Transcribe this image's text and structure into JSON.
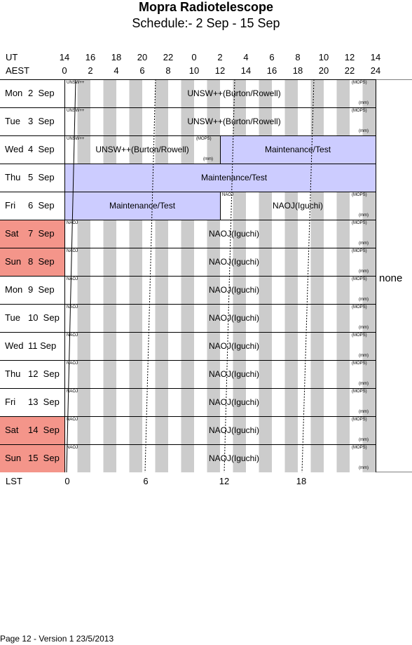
{
  "title": "Mopra Radiotelescope",
  "subtitle": "Schedule:- 2  Sep - 15 Sep",
  "axes": {
    "ut_label": "UT",
    "aest_label": "AEST",
    "lst_label": "LST",
    "ut_ticks": [
      "14",
      "16",
      "18",
      "20",
      "22",
      "0",
      "2",
      "4",
      "6",
      "8",
      "10",
      "12",
      "14"
    ],
    "aest_ticks": [
      "0",
      "2",
      "4",
      "6",
      "8",
      "10",
      "12",
      "14",
      "16",
      "18",
      "20",
      "22",
      "24"
    ],
    "lst_ticks": [
      "0",
      "6",
      "12",
      "18"
    ]
  },
  "days": [
    {
      "dow": "Mon",
      "date": "2  Sep",
      "weekend": false
    },
    {
      "dow": "Tue",
      "date": "3  Sep",
      "weekend": false
    },
    {
      "dow": "Wed",
      "date": "4  Sep",
      "weekend": false
    },
    {
      "dow": "Thu",
      "date": "5  Sep",
      "weekend": false
    },
    {
      "dow": "Fri",
      "date": "6  Sep",
      "weekend": false
    },
    {
      "dow": "Sat",
      "date": "7  Sep",
      "weekend": true
    },
    {
      "dow": "Sun",
      "date": "8  Sep",
      "weekend": true
    },
    {
      "dow": "Mon",
      "date": "9  Sep",
      "weekend": false
    },
    {
      "dow": "Tue",
      "date": "10  Sep",
      "weekend": false
    },
    {
      "dow": "Wed",
      "date": "11 Sep",
      "weekend": false
    },
    {
      "dow": "Thu",
      "date": "12  Sep",
      "weekend": false
    },
    {
      "dow": "Fri",
      "date": "13  Sep",
      "weekend": false
    },
    {
      "dow": "Sat",
      "date": "14  Sep",
      "weekend": true
    },
    {
      "dow": "Sun",
      "date": "15  Sep",
      "weekend": true
    }
  ],
  "blocks": [
    {
      "day": 0,
      "start": 0,
      "end": 24,
      "label": "UNSW++(Burton/Rowell)",
      "code": "UNSW++",
      "maint": false
    },
    {
      "day": 1,
      "start": 0,
      "end": 24,
      "label": "UNSW++(Burton/Rowell)",
      "code": "UNSW++",
      "maint": false
    },
    {
      "day": 2,
      "start": 0,
      "end": 12,
      "label": "UNSW++(Burton/Rowell)",
      "code": "UNSW++",
      "maint": false
    },
    {
      "day": 2,
      "start": 12,
      "end": 24,
      "label": "Maintenance/Test",
      "code": "",
      "maint": true
    },
    {
      "day": 3,
      "start": 0,
      "end": 24,
      "label": "Maintenance/Test",
      "code": "",
      "maint": true
    },
    {
      "day": 4,
      "start": 0,
      "end": 12,
      "label": "Maintenance/Test",
      "code": "",
      "maint": true
    },
    {
      "day": 4,
      "start": 12,
      "end": 24,
      "label": "NAOJ(Iguchi)",
      "code": "NAOJ",
      "maint": false
    },
    {
      "day": 5,
      "start": 0,
      "end": 24,
      "label": "NAOJ(Iguchi)",
      "code": "NAOJ",
      "maint": false
    },
    {
      "day": 6,
      "start": 0,
      "end": 24,
      "label": "NAOJ(Iguchi)",
      "code": "NAOJ",
      "maint": false
    },
    {
      "day": 7,
      "start": 0,
      "end": 24,
      "label": "NAOJ(Iguchi)",
      "code": "NAOJ",
      "maint": false
    },
    {
      "day": 8,
      "start": 0,
      "end": 24,
      "label": "NAOJ(Iguchi)",
      "code": "NAOJ",
      "maint": false
    },
    {
      "day": 9,
      "start": 0,
      "end": 24,
      "label": "NAOJ(Iguchi)",
      "code": "NAOJ",
      "maint": false
    },
    {
      "day": 10,
      "start": 0,
      "end": 24,
      "label": "NAOJ(Iguchi)",
      "code": "NAOJ",
      "maint": false
    },
    {
      "day": 11,
      "start": 0,
      "end": 24,
      "label": "NAOJ(Iguchi)",
      "code": "NAOJ",
      "maint": false
    },
    {
      "day": 12,
      "start": 0,
      "end": 24,
      "label": "NAOJ(Iguchi)",
      "code": "NAOJ",
      "maint": false
    },
    {
      "day": 13,
      "start": 0,
      "end": 24,
      "label": "NAOJ(Iguchi)",
      "code": "NAOJ",
      "maint": false
    }
  ],
  "mops_label": "(MOPS)",
  "mm_label": "(mm)",
  "side_note": "none",
  "footer": "Page 12 - Version 1  23/5/2013",
  "colors": {
    "stripe": "#cccccc",
    "maintenance": "#ccccff",
    "weekend": "#f4958a"
  }
}
